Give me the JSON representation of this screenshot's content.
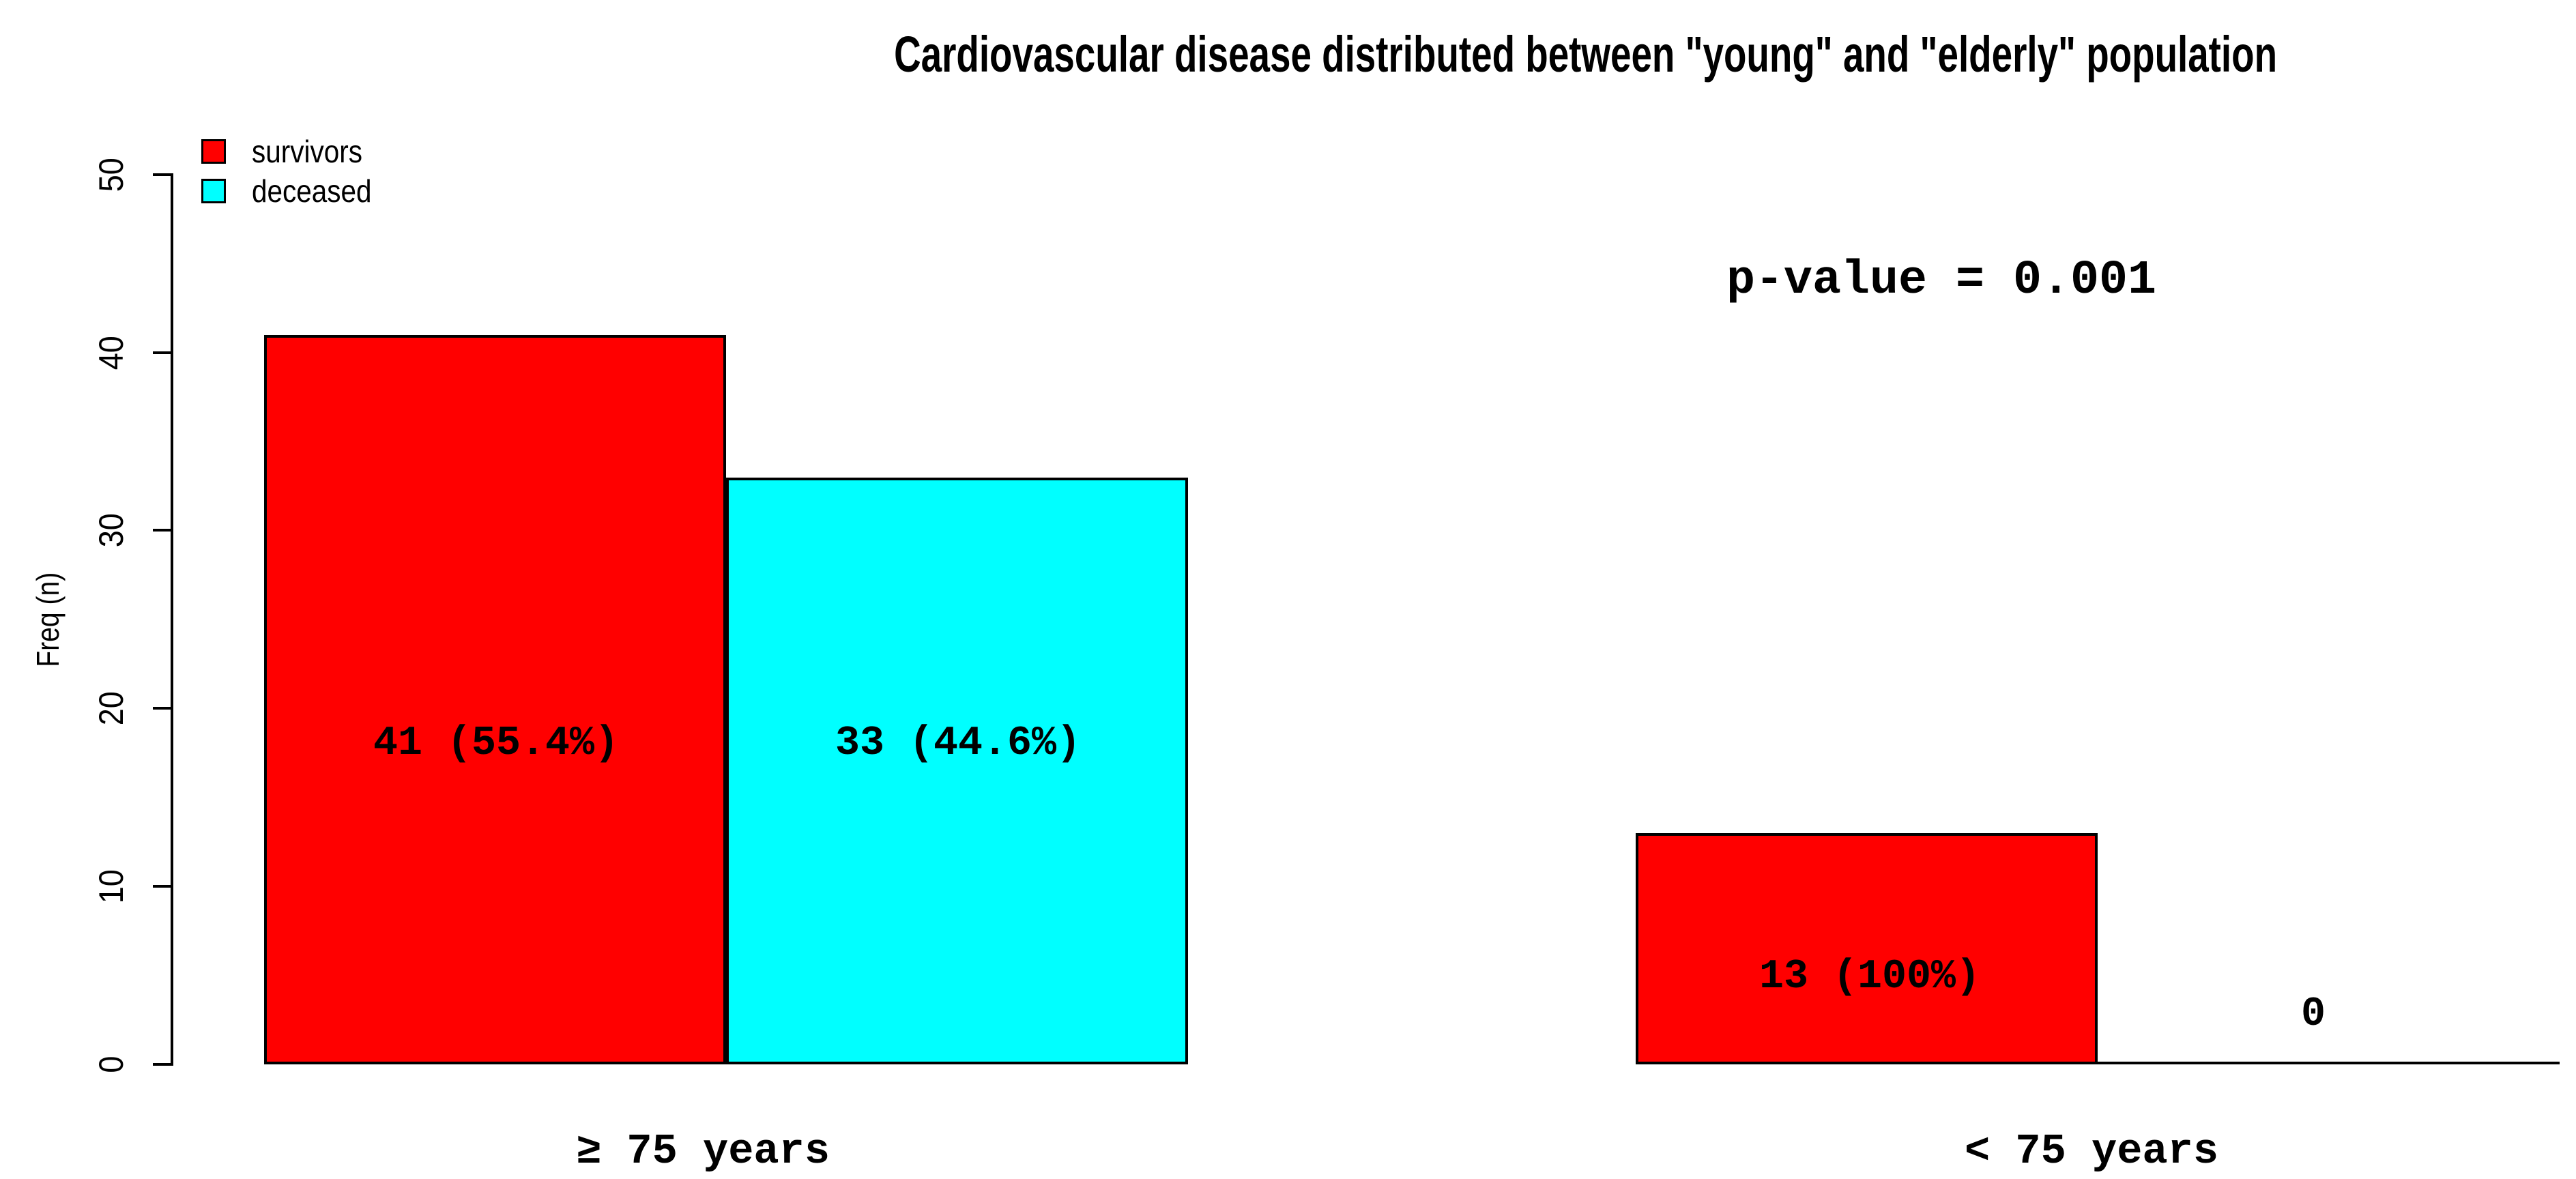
{
  "chart_data": {
    "type": "bar",
    "title": "Cardiovascular disease distributed between \"young\" and \"elderly\" population",
    "ylabel": "Freq (n)",
    "xlabel": "",
    "ylim": [
      0,
      50
    ],
    "yticks": [
      "0",
      "10",
      "20",
      "30",
      "40",
      "50"
    ],
    "grid": false,
    "legend_position": "top-left",
    "background_color": "#FFFFFF",
    "axis_color": "#000000",
    "categories": [
      "≥ 75 years",
      "< 75 years"
    ],
    "series": [
      {
        "name": "survivors",
        "color": "#FF0000",
        "values": [
          41,
          13
        ],
        "labels": [
          "41 (55.4%)",
          "13 (100%)"
        ]
      },
      {
        "name": "deceased",
        "color": "#00FFFF",
        "values": [
          33,
          0
        ],
        "labels": [
          "33 (44.6%)",
          "0"
        ]
      }
    ],
    "annotation": "p-value = 0.001"
  }
}
